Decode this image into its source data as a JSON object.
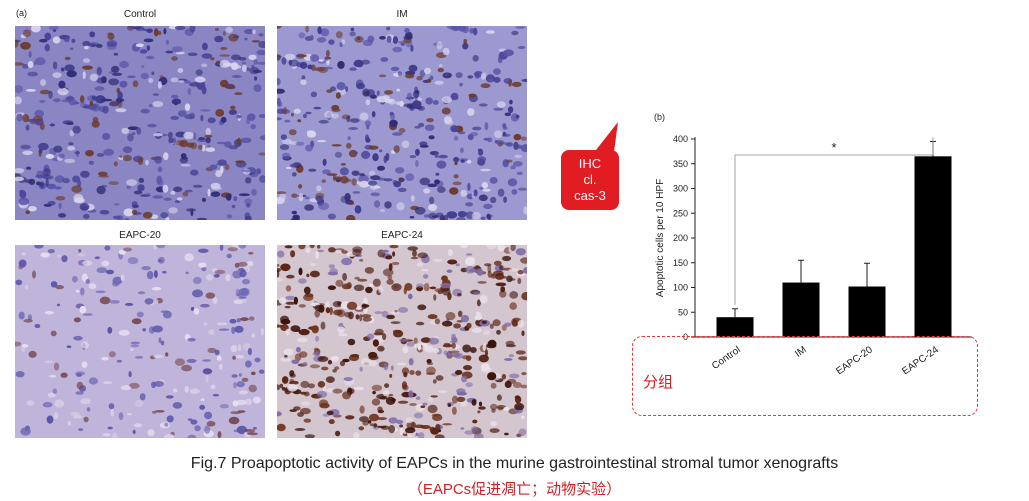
{
  "figure": {
    "panel_a_label": "(a)",
    "panel_b_label": "(b)",
    "images": [
      {
        "label": "Control",
        "stain": "sparse"
      },
      {
        "label": "IM",
        "stain": "sparse"
      },
      {
        "label": "EAPC-20",
        "stain": "pale"
      },
      {
        "label": "EAPC-24",
        "stain": "dense"
      }
    ],
    "callout": {
      "lines": [
        "IHC",
        "cl.",
        "cas-3"
      ],
      "color": "#e11c22"
    },
    "group_annotation": "分组",
    "caption": "Fig.7 Proapoptotic activity of EAPCs in the murine gastrointestinal stromal tumor xenografts",
    "caption_cn": "（EAPCs促进凋亡；动物实验）",
    "accent_color": "#d21e24"
  },
  "chart_data": {
    "type": "bar",
    "categories": [
      "Control",
      "IM",
      "EAPC-20",
      "EAPC-24"
    ],
    "values": [
      40,
      110,
      102,
      365
    ],
    "errors": [
      17,
      45,
      47,
      30
    ],
    "ylabel": "Apoptotic cells per 10 HPF",
    "ylim": [
      0,
      400
    ],
    "yticks": [
      "0",
      "50",
      "100",
      "150",
      "200",
      "250",
      "300",
      "350",
      "400"
    ],
    "significance": "*",
    "bar_color": "#000000",
    "grid": false
  }
}
